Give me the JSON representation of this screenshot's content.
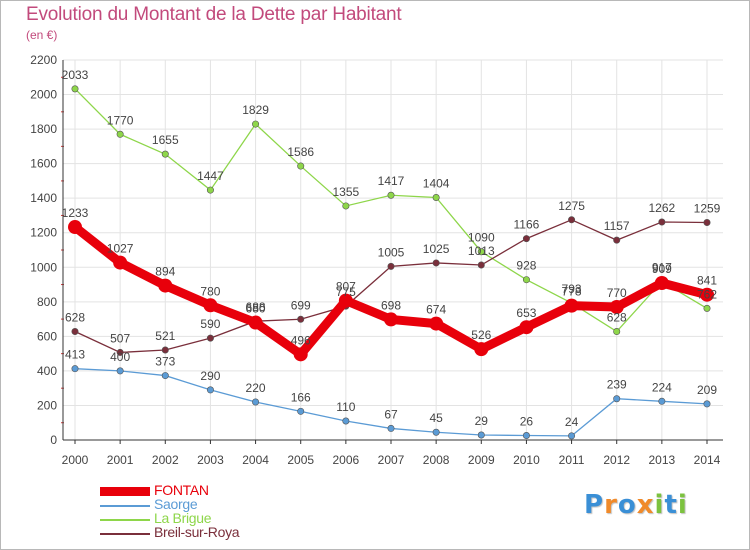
{
  "header": {
    "title": "Evolution du Montant de la Dette par Habitant",
    "subtitle": "(en €)"
  },
  "colors": {
    "title": "#c24a7c",
    "grid": "#e3e3e3",
    "axis": "#333333",
    "axis_tick_mark": "#d03a3a",
    "label_text": "#444444"
  },
  "logo": {
    "letters": [
      "P",
      "r",
      "o",
      "x",
      "i",
      "t",
      "i"
    ],
    "colors": [
      "#3a8fd6",
      "#f08a2a",
      "#3a8fd6",
      "#f08a2a",
      "#7cc23f",
      "#3a8fd6",
      "#7cc23f"
    ]
  },
  "chart_data": {
    "type": "line",
    "title": "Evolution du Montant de la Dette par Habitant",
    "subtitle": "(en €)",
    "xlabel": "",
    "ylabel": "",
    "ylim": [
      0,
      2200
    ],
    "yticks": [
      0,
      200,
      400,
      600,
      800,
      1000,
      1200,
      1400,
      1600,
      1800,
      2000,
      2200
    ],
    "grid": true,
    "legend_position": "bottom-left",
    "x": [
      2000,
      2001,
      2002,
      2003,
      2004,
      2005,
      2006,
      2007,
      2008,
      2009,
      2010,
      2011,
      2012,
      2013,
      2014
    ],
    "series": [
      {
        "name": "FONTAN",
        "color": "#e8000b",
        "emphasis": true,
        "values": [
          1233,
          1027,
          894,
          780,
          680,
          496,
          807,
          698,
          674,
          526,
          653,
          778,
          770,
          909,
          841
        ]
      },
      {
        "name": "Saorge",
        "color": "#5b9bd5",
        "values": [
          413,
          400,
          373,
          290,
          220,
          166,
          110,
          67,
          45,
          29,
          26,
          24,
          239,
          224,
          209
        ]
      },
      {
        "name": "La Brigue",
        "color": "#8ed64a",
        "values": [
          2033,
          1770,
          1655,
          1447,
          1829,
          1586,
          1355,
          1417,
          1404,
          1090,
          928,
          793,
          628,
          917,
          762
        ]
      },
      {
        "name": "Breil-sur-Roya",
        "color": "#7a2f3b",
        "values": [
          628,
          507,
          521,
          590,
          688,
          699,
          775,
          1005,
          1025,
          1013,
          1166,
          1275,
          1157,
          1262,
          1259
        ]
      }
    ]
  }
}
